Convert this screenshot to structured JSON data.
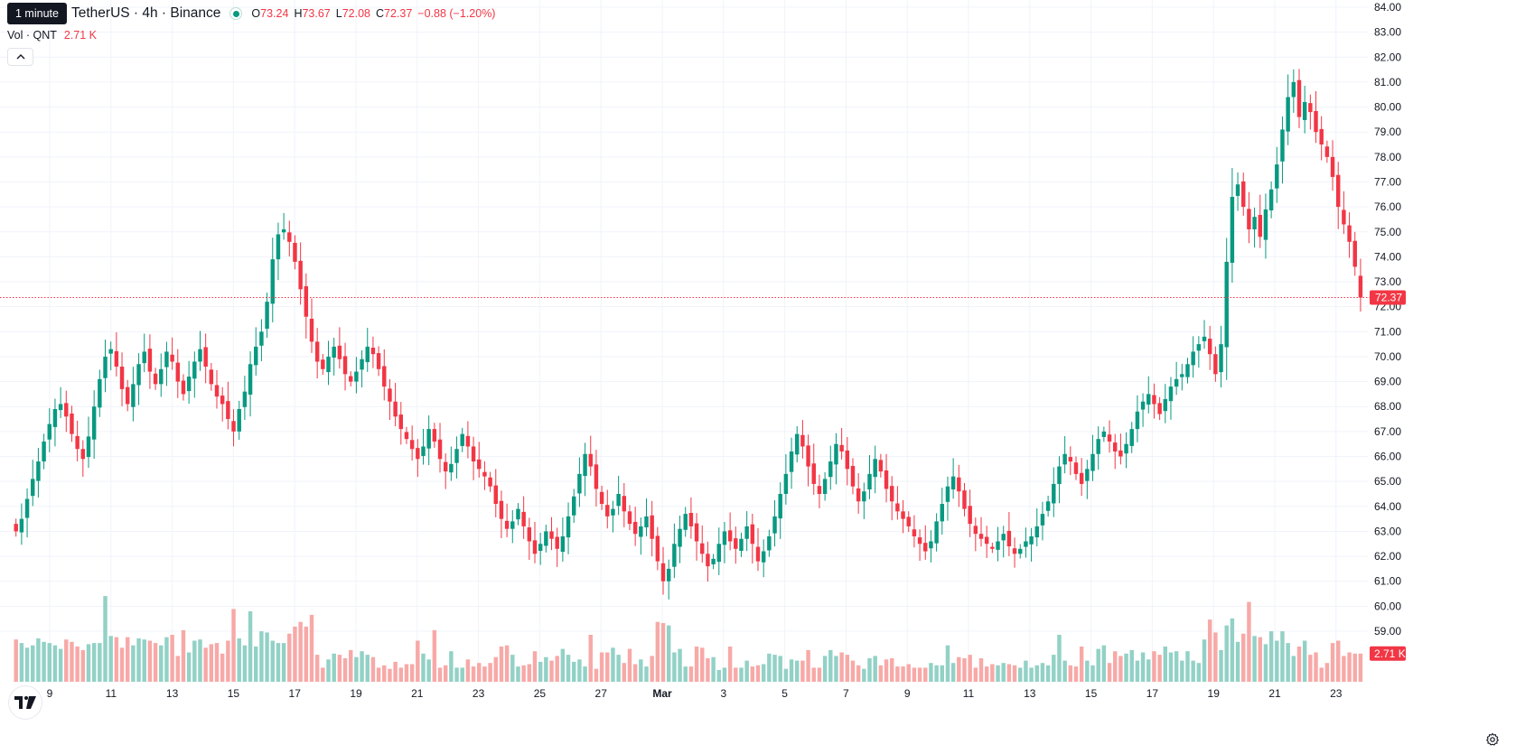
{
  "header": {
    "symbol_title": "TetherUS · 4h · Binance",
    "interval_tooltip": "1 minute",
    "ohlc": {
      "o_label": "O",
      "o": "73.24",
      "h_label": "H",
      "h": "73.67",
      "l_label": "L",
      "l": "72.08",
      "c_label": "C",
      "c": "72.37",
      "change": "−0.88 (−1.20%)"
    },
    "volume_label": "Vol · QNT",
    "volume_value": "2.71 K"
  },
  "colors": {
    "up": "#089981",
    "down": "#f23645",
    "vol_up": "#92d1c6",
    "vol_down": "#f7a9a7"
  },
  "icons": {
    "collapse": "chevron-up-icon",
    "logo": "tradingview-logo",
    "settings": "gear-icon"
  },
  "chart_data": {
    "type": "candlestick",
    "timeframe": "4h",
    "last_price": 72.37,
    "last_price_label": "72.37",
    "last_volume_label": "2.71 K",
    "ylim": [
      59,
      84
    ],
    "y_ticks": [
      "59.00",
      "60.00",
      "61.00",
      "62.00",
      "63.00",
      "64.00",
      "65.00",
      "66.00",
      "67.00",
      "68.00",
      "69.00",
      "70.00",
      "71.00",
      "72.00",
      "73.00",
      "74.00",
      "75.00",
      "76.00",
      "77.00",
      "78.00",
      "79.00",
      "80.00",
      "81.00",
      "82.00",
      "83.00",
      "84.00"
    ],
    "x_ticks": [
      {
        "label": "9",
        "day": 9
      },
      {
        "label": "11",
        "day": 11
      },
      {
        "label": "13",
        "day": 13
      },
      {
        "label": "15",
        "day": 15
      },
      {
        "label": "17",
        "day": 17
      },
      {
        "label": "19",
        "day": 19
      },
      {
        "label": "21",
        "day": 21
      },
      {
        "label": "23",
        "day": 23
      },
      {
        "label": "25",
        "day": 25
      },
      {
        "label": "27",
        "day": 27
      },
      {
        "label": "Mar",
        "day": 29
      },
      {
        "label": "3",
        "day": 31
      },
      {
        "label": "5",
        "day": 33
      },
      {
        "label": "7",
        "day": 35
      },
      {
        "label": "9",
        "day": 37
      },
      {
        "label": "11",
        "day": 39
      },
      {
        "label": "13",
        "day": 41
      },
      {
        "label": "15",
        "day": 43
      },
      {
        "label": "17",
        "day": 45
      },
      {
        "label": "19",
        "day": 47
      },
      {
        "label": "21",
        "day": 49
      },
      {
        "label": "23",
        "day": 51
      }
    ],
    "days_start": 7.9,
    "days_end": 51.8,
    "closes": [
      63.0,
      63.5,
      64.3,
      65.1,
      65.8,
      66.6,
      67.3,
      67.9,
      68.1,
      67.6,
      66.9,
      66.3,
      65.9,
      66.8,
      68.0,
      69.1,
      70.0,
      70.3,
      69.6,
      68.7,
      68.1,
      68.9,
      69.7,
      70.2,
      69.4,
      68.9,
      69.5,
      70.2,
      69.8,
      69.0,
      68.5,
      69.2,
      69.8,
      70.3,
      69.6,
      68.9,
      68.4,
      68.1,
      67.5,
      67.0,
      67.9,
      68.6,
      69.7,
      70.4,
      71.0,
      72.2,
      73.9,
      74.9,
      75.1,
      74.6,
      73.8,
      72.7,
      71.6,
      70.6,
      69.8,
      69.5,
      70.0,
      70.4,
      69.9,
      69.3,
      69.0,
      69.4,
      69.9,
      70.4,
      70.1,
      69.5,
      68.8,
      68.2,
      67.6,
      67.1,
      66.7,
      66.3,
      65.9,
      66.4,
      67.1,
      66.6,
      65.9,
      65.4,
      65.7,
      66.3,
      66.9,
      66.4,
      65.8,
      65.5,
      65.2,
      64.8,
      64.1,
      63.5,
      63.1,
      63.4,
      63.9,
      63.2,
      62.6,
      62.1,
      62.5,
      63.0,
      62.7,
      62.3,
      62.8,
      63.6,
      64.4,
      65.3,
      66.1,
      65.6,
      64.7,
      64.1,
      63.6,
      63.9,
      64.5,
      63.8,
      63.3,
      62.9,
      63.2,
      63.6,
      62.7,
      61.8,
      61.0,
      61.5,
      62.5,
      63.1,
      63.7,
      63.2,
      62.6,
      62.1,
      61.6,
      61.9,
      62.5,
      63.0,
      62.6,
      62.3,
      62.7,
      63.2,
      62.5,
      61.8,
      62.2,
      62.8,
      63.6,
      64.5,
      65.3,
      66.2,
      66.9,
      66.4,
      65.6,
      64.9,
      64.5,
      65.1,
      65.8,
      66.5,
      66.2,
      65.5,
      64.8,
      64.2,
      64.6,
      65.3,
      65.9,
      65.4,
      64.7,
      64.2,
      63.8,
      63.5,
      63.2,
      62.8,
      62.5,
      62.2,
      62.6,
      63.4,
      64.1,
      64.8,
      65.2,
      64.6,
      63.9,
      63.3,
      62.9,
      62.7,
      62.5,
      62.3,
      62.6,
      62.9,
      62.4,
      62.1,
      62.3,
      62.6,
      62.8,
      63.2,
      63.7,
      64.2,
      64.9,
      65.6,
      66.1,
      65.8,
      65.3,
      64.9,
      65.5,
      66.1,
      66.7,
      67.0,
      66.6,
      66.2,
      66.0,
      66.5,
      67.1,
      67.8,
      68.2,
      68.5,
      68.1,
      67.7,
      68.3,
      68.8,
      69.1,
      69.3,
      69.7,
      70.2,
      70.5,
      70.8,
      70.1,
      69.3,
      70.5,
      73.8,
      76.4,
      76.9,
      76.0,
      75.1,
      75.6,
      74.8,
      75.9,
      76.7,
      77.7,
      79.1,
      80.4,
      81.0,
      79.6,
      80.2,
      79.8,
      79.0,
      78.5,
      78.0,
      77.2,
      76.0,
      75.3,
      74.6,
      73.6,
      72.37
    ],
    "volumes": [
      36,
      33,
      29,
      31,
      37,
      34,
      33,
      31,
      28,
      36,
      34,
      30,
      27,
      32,
      33,
      33,
      73,
      39,
      38,
      29,
      38,
      31,
      37,
      36,
      35,
      33,
      31,
      38,
      40,
      22,
      44,
      25,
      35,
      36,
      29,
      32,
      33,
      24,
      35,
      62,
      37,
      31,
      60,
      30,
      43,
      42,
      35,
      33,
      33,
      41,
      47,
      51,
      47,
      57,
      23,
      12,
      19,
      24,
      23,
      20,
      27,
      21,
      26,
      23,
      21,
      12,
      14,
      11,
      17,
      12,
      15,
      15,
      35,
      24,
      19,
      44,
      12,
      14,
      26,
      12,
      12,
      19,
      13,
      16,
      13,
      16,
      21,
      30,
      31,
      23,
      13,
      14,
      15,
      26,
      17,
      21,
      18,
      22,
      28,
      23,
      17,
      19,
      13,
      40,
      11,
      25,
      25,
      29,
      23,
      16,
      28,
      15,
      19,
      13,
      22,
      51,
      50,
      48,
      25,
      28,
      13,
      13,
      30,
      29,
      20,
      21,
      10,
      12,
      30,
      12,
      12,
      18,
      13,
      14,
      15,
      24,
      23,
      22,
      11,
      19,
      18,
      18,
      27,
      12,
      12,
      22,
      27,
      22,
      25,
      23,
      18,
      14,
      11,
      20,
      22,
      14,
      19,
      20,
      13,
      13,
      15,
      12,
      12,
      12,
      16,
      14,
      14,
      31,
      16,
      21,
      20,
      23,
      12,
      20,
      13,
      15,
      14,
      16,
      15,
      14,
      12,
      18,
      12,
      14,
      16,
      14,
      23,
      40,
      18,
      14,
      13,
      30,
      18,
      14,
      28,
      31,
      16,
      26,
      22,
      24,
      27,
      18,
      25,
      19,
      26,
      23,
      30,
      25,
      26,
      18,
      26,
      18,
      16,
      36,
      53,
      42,
      27,
      48,
      54,
      34,
      41,
      68,
      39,
      38,
      32,
      43,
      35,
      43,
      33,
      22,
      30,
      35,
      23,
      25,
      12,
      16,
      33,
      35,
      22,
      25,
      24,
      24
    ]
  }
}
